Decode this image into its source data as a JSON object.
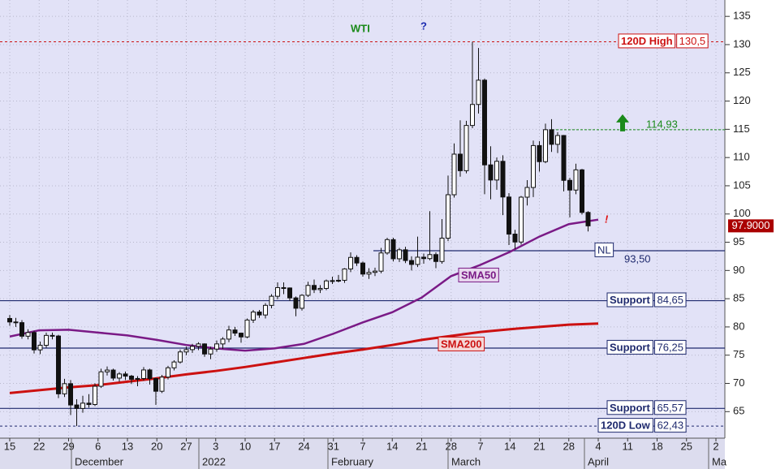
{
  "chart_data": {
    "type": "candlestick",
    "title": "WTI",
    "annotations": [
      "?",
      "!"
    ],
    "candles": [
      [
        81.5,
        82.1,
        80.2,
        80.88
      ],
      [
        80.88,
        81.6,
        80.0,
        80.76
      ],
      [
        80.76,
        81.2,
        77.9,
        78.36
      ],
      [
        78.36,
        79.6,
        77.8,
        79.01
      ],
      [
        79.01,
        79.3,
        75.3,
        75.94
      ],
      [
        75.94,
        77.4,
        75.2,
        76.75
      ],
      [
        76.75,
        79.0,
        76.3,
        78.5
      ],
      [
        78.5,
        79.0,
        77.8,
        78.39
      ],
      [
        78.39,
        78.6,
        67.4,
        68.15
      ],
      [
        68.15,
        70.8,
        67.6,
        69.95
      ],
      [
        69.95,
        70.6,
        64.4,
        66.18
      ],
      [
        66.18,
        67.2,
        62.43,
        65.57
      ],
      [
        65.57,
        67.8,
        64.8,
        66.5
      ],
      [
        66.5,
        68.1,
        65.7,
        66.26
      ],
      [
        66.26,
        70.0,
        66.0,
        69.49
      ],
      [
        69.49,
        72.6,
        69.2,
        72.05
      ],
      [
        72.05,
        73.0,
        71.4,
        72.36
      ],
      [
        72.36,
        72.6,
        70.5,
        70.94
      ],
      [
        70.94,
        72.0,
        70.3,
        71.67
      ],
      [
        71.67,
        72.1,
        70.6,
        71.29
      ],
      [
        71.29,
        71.5,
        69.9,
        70.73
      ],
      [
        70.73,
        71.3,
        69.5,
        70.87
      ],
      [
        70.87,
        72.9,
        70.5,
        72.38
      ],
      [
        72.38,
        72.6,
        69.8,
        70.86
      ],
      [
        70.86,
        71.0,
        66.2,
        68.61
      ],
      [
        68.61,
        71.5,
        68.3,
        71.12
      ],
      [
        71.12,
        73.1,
        70.7,
        72.76
      ],
      [
        72.76,
        74.1,
        72.3,
        73.79
      ],
      [
        73.79,
        76.0,
        73.5,
        75.57
      ],
      [
        75.57,
        76.5,
        75.0,
        75.98
      ],
      [
        75.98,
        77.0,
        75.4,
        76.56
      ],
      [
        76.56,
        77.3,
        75.9,
        76.99
      ],
      [
        76.99,
        77.1,
        74.7,
        75.21
      ],
      [
        75.21,
        76.5,
        74.3,
        76.08
      ],
      [
        76.08,
        77.6,
        75.6,
        76.99
      ],
      [
        76.99,
        78.2,
        76.1,
        77.85
      ],
      [
        77.85,
        80.2,
        77.3,
        79.46
      ],
      [
        79.46,
        80.0,
        78.4,
        78.9
      ],
      [
        78.9,
        79.0,
        77.2,
        78.23
      ],
      [
        78.23,
        81.5,
        78.0,
        81.22
      ],
      [
        81.22,
        83.0,
        80.7,
        82.64
      ],
      [
        82.64,
        83.0,
        81.6,
        82.12
      ],
      [
        82.12,
        84.2,
        81.5,
        83.82
      ],
      [
        83.82,
        85.8,
        83.3,
        85.43
      ],
      [
        85.43,
        87.9,
        84.9,
        86.96
      ],
      [
        86.96,
        87.9,
        85.8,
        86.9
      ],
      [
        86.9,
        87.0,
        84.6,
        85.14
      ],
      [
        85.14,
        85.4,
        81.9,
        83.31
      ],
      [
        83.31,
        85.8,
        82.9,
        85.6
      ],
      [
        85.6,
        88.0,
        85.3,
        87.35
      ],
      [
        87.35,
        88.4,
        86.0,
        86.61
      ],
      [
        86.61,
        87.4,
        86.0,
        86.82
      ],
      [
        86.82,
        88.4,
        86.5,
        88.15
      ],
      [
        88.15,
        88.9,
        87.6,
        88.2
      ],
      [
        88.2,
        89.2,
        87.9,
        88.26
      ],
      [
        88.26,
        90.4,
        87.8,
        90.27
      ],
      [
        90.27,
        93.2,
        89.7,
        92.31
      ],
      [
        92.31,
        92.7,
        90.8,
        91.32
      ],
      [
        91.32,
        91.6,
        88.9,
        89.36
      ],
      [
        89.36,
        90.4,
        88.5,
        89.66
      ],
      [
        89.66,
        90.5,
        89.0,
        89.88
      ],
      [
        89.88,
        94.0,
        89.5,
        93.1
      ],
      [
        93.1,
        95.8,
        92.8,
        95.46
      ],
      [
        95.46,
        95.8,
        91.6,
        92.07
      ],
      [
        92.07,
        94.0,
        91.5,
        93.66
      ],
      [
        93.66,
        94.2,
        91.3,
        91.76
      ],
      [
        91.76,
        92.5,
        90.0,
        91.07
      ],
      [
        91.07,
        96.0,
        90.6,
        92.35
      ],
      [
        92.35,
        93.0,
        91.2,
        92.1
      ],
      [
        92.1,
        100.5,
        91.8,
        92.81
      ],
      [
        92.81,
        93.2,
        90.4,
        91.59
      ],
      [
        91.59,
        99.1,
        91.2,
        95.72
      ],
      [
        95.72,
        106.8,
        95.2,
        103.41
      ],
      [
        103.41,
        112.5,
        102.9,
        110.6
      ],
      [
        110.6,
        116.6,
        106.6,
        107.67
      ],
      [
        107.67,
        116.5,
        107.2,
        115.68
      ],
      [
        115.68,
        130.5,
        115.2,
        119.4
      ],
      [
        119.4,
        129.4,
        117.8,
        123.7
      ],
      [
        123.7,
        124.0,
        103.5,
        108.7
      ],
      [
        108.7,
        112.0,
        102.6,
        106.02
      ],
      [
        106.02,
        110.0,
        104.3,
        109.33
      ],
      [
        109.33,
        110.4,
        99.8,
        103.01
      ],
      [
        103.01,
        103.7,
        94.5,
        96.44
      ],
      [
        96.44,
        97.2,
        93.8,
        95.04
      ],
      [
        95.04,
        103.2,
        94.6,
        102.98
      ],
      [
        102.98,
        106.0,
        101.5,
        104.7
      ],
      [
        104.7,
        113.0,
        103.0,
        112.12
      ],
      [
        112.12,
        112.9,
        107.5,
        109.27
      ],
      [
        109.27,
        116.0,
        109.0,
        114.93
      ],
      [
        114.93,
        116.8,
        111.0,
        112.34
      ],
      [
        112.34,
        114.5,
        110.8,
        113.9
      ],
      [
        113.9,
        114.0,
        104.0,
        105.96
      ],
      [
        105.96,
        106.4,
        99.4,
        104.24
      ],
      [
        104.24,
        108.9,
        103.5,
        107.82
      ],
      [
        107.82,
        108.0,
        99.9,
        100.28
      ],
      [
        100.28,
        100.5,
        96.9,
        97.9
      ]
    ],
    "categories": [
      "15",
      "22",
      "29",
      "6",
      "13",
      "20",
      "27",
      "3",
      "10",
      "17",
      "24",
      "31",
      "7",
      "14",
      "21",
      "28",
      "7",
      "14",
      "21",
      "28",
      "4",
      "11",
      "18",
      "25",
      "2"
    ],
    "months": [
      "December",
      "2022",
      "February",
      "March",
      "April",
      "Ma"
    ],
    "series": [
      {
        "name": "SMA50",
        "color": "#7a1a86",
        "values": [
          78.3,
          79.4,
          79.5,
          79.0,
          78.5,
          77.7,
          76.8,
          76.2,
          75.8,
          76.2,
          77.0,
          78.8,
          80.8,
          82.6,
          85.2,
          89.0,
          91.0,
          93.3,
          96.0,
          98.2,
          99.0,
          null,
          null,
          null,
          null
        ]
      },
      {
        "name": "SMA200",
        "color": "#cc1111",
        "values": [
          68.3,
          68.8,
          69.3,
          69.7,
          70.3,
          70.9,
          71.6,
          72.2,
          72.9,
          73.7,
          74.5,
          75.3,
          76.0,
          76.8,
          77.7,
          78.4,
          79.1,
          79.6,
          80.0,
          80.4,
          80.6,
          null,
          null,
          null,
          null
        ]
      }
    ],
    "levels": [
      {
        "name": "120D High",
        "value": 130.5,
        "value_label": "130,5",
        "color": "#cc1111"
      },
      {
        "name": "Support",
        "value": 84.65,
        "value_label": "84,65",
        "color": "#1f2a6e"
      },
      {
        "name": "Support",
        "value": 76.25,
        "value_label": "76,25",
        "color": "#1f2a6e"
      },
      {
        "name": "Support",
        "value": 65.57,
        "value_label": "65,57",
        "color": "#1f2a6e"
      },
      {
        "name": "120D Low",
        "value": 62.43,
        "value_label": "62,43",
        "color": "#1f2a6e"
      }
    ],
    "neckline": {
      "name": "NL",
      "value": 93.5,
      "value_label": "93,50"
    },
    "target": {
      "value": 114.93,
      "value_label": "114,93"
    },
    "last_price": {
      "value": 97.9,
      "label": "97.9000"
    },
    "ylim": [
      60.3,
      137.9
    ],
    "yticks": [
      65,
      70,
      75,
      80,
      85,
      90,
      95,
      100,
      105,
      110,
      115,
      120,
      125,
      130,
      135
    ],
    "grid": true
  }
}
